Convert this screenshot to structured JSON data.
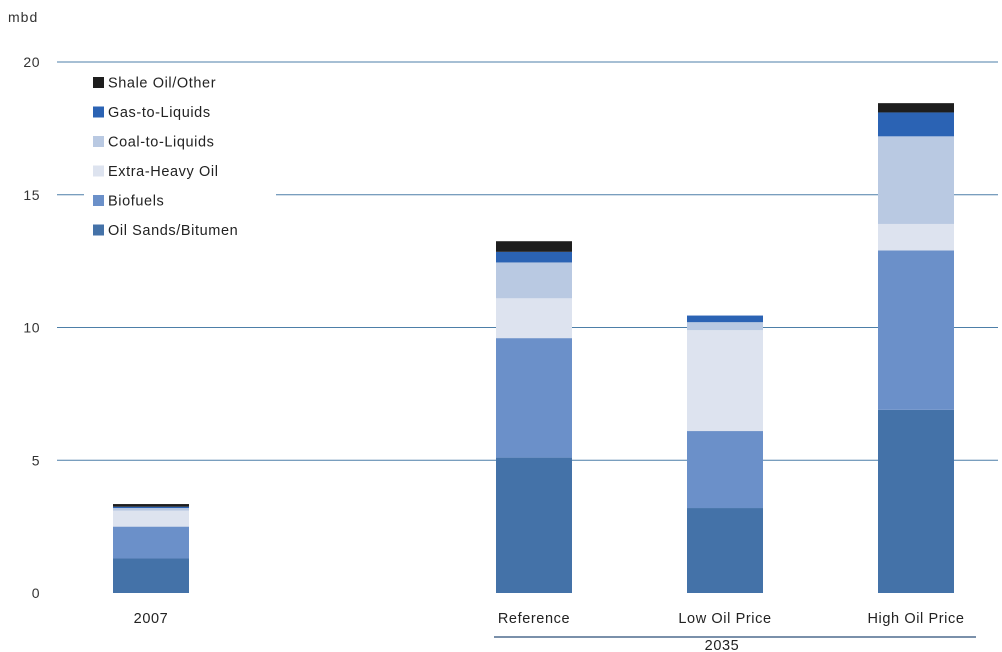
{
  "chart_data": {
    "type": "bar",
    "stacked": true,
    "unit_label": "mbd",
    "ylim": [
      0,
      20
    ],
    "yticks": [
      0,
      5,
      10,
      15,
      20
    ],
    "grid": true,
    "legend_position": "top-left",
    "categories": [
      "2007",
      "Reference",
      "Low Oil Price",
      "High Oil Price"
    ],
    "category_group": {
      "label": "2035",
      "members": [
        "Reference",
        "Low Oil Price",
        "High Oil Price"
      ]
    },
    "series": [
      {
        "name": "Oil Sands/Bitumen",
        "color": "#4472a8",
        "values": [
          1.3,
          5.1,
          3.2,
          6.9
        ]
      },
      {
        "name": "Biofuels",
        "color": "#6b90c9",
        "values": [
          1.2,
          4.5,
          2.9,
          6.0
        ]
      },
      {
        "name": "Extra-Heavy Oil",
        "color": "#dde3ef",
        "values": [
          0.6,
          1.5,
          3.8,
          1.0
        ]
      },
      {
        "name": "Coal-to-Liquids",
        "color": "#b9c9e2",
        "values": [
          0.1,
          1.35,
          0.3,
          3.3
        ]
      },
      {
        "name": "Gas-to-Liquids",
        "color": "#2b63b4",
        "values": [
          0.05,
          0.4,
          0.25,
          0.9
        ]
      },
      {
        "name": "Shale Oil/Other",
        "color": "#1e1e1e",
        "values": [
          0.1,
          0.4,
          0.0,
          0.35
        ]
      }
    ],
    "gridline_color": "#4d7fa8"
  }
}
